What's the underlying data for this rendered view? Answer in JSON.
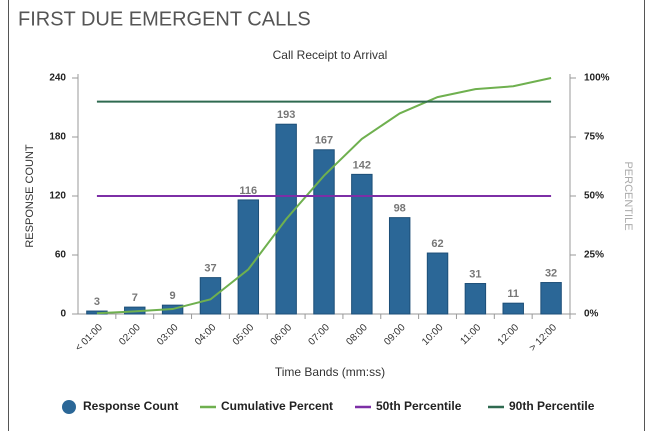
{
  "page_title": "FIRST DUE EMERGENT CALLS",
  "chart_data": {
    "type": "bar",
    "title": "Call Receipt to Arrival",
    "x_label": "Time Bands (mm:ss)",
    "y_label": "RESPONSE COUNT",
    "y2_label": "PERCENTILE",
    "categories": [
      "< 01:00",
      "02:00",
      "03:00",
      "04:00",
      "05:00",
      "06:00",
      "07:00",
      "08:00",
      "09:00",
      "10:00",
      "11:00",
      "12:00",
      "> 12:00"
    ],
    "series": [
      {
        "name": "Response Count",
        "type": "bar",
        "color": "#2b6797",
        "values": [
          3,
          7,
          9,
          37,
          116,
          193,
          167,
          142,
          98,
          62,
          31,
          11,
          32
        ]
      },
      {
        "name": "Cumulative Percent",
        "type": "line",
        "axis": "y2",
        "color": "#6fb04f",
        "values": [
          0.3,
          1.1,
          2.1,
          6.2,
          18.9,
          40.2,
          58.6,
          74.2,
          85.0,
          91.9,
          95.3,
          96.5,
          100
        ]
      },
      {
        "name": "50th Percentile",
        "type": "line",
        "axis": "y2",
        "color": "#7d2fa6",
        "values": [
          50,
          50,
          50,
          50,
          50,
          50,
          50,
          50,
          50,
          50,
          50,
          50,
          50
        ]
      },
      {
        "name": "90th Percentile",
        "type": "line",
        "axis": "y2",
        "color": "#2f6a50",
        "values": [
          90,
          90,
          90,
          90,
          90,
          90,
          90,
          90,
          90,
          90,
          90,
          90,
          90
        ]
      }
    ],
    "ylim": [
      0,
      240
    ],
    "yticks": [
      0,
      60,
      120,
      180,
      240
    ],
    "y2lim": [
      0,
      100
    ],
    "y2ticks": [
      {
        "value": 0,
        "label": "0%"
      },
      {
        "value": 25,
        "label": "25%"
      },
      {
        "value": 50,
        "label": "50%"
      },
      {
        "value": 75,
        "label": "75%"
      },
      {
        "value": 100,
        "label": "100%"
      }
    ],
    "legend": "bottom"
  }
}
